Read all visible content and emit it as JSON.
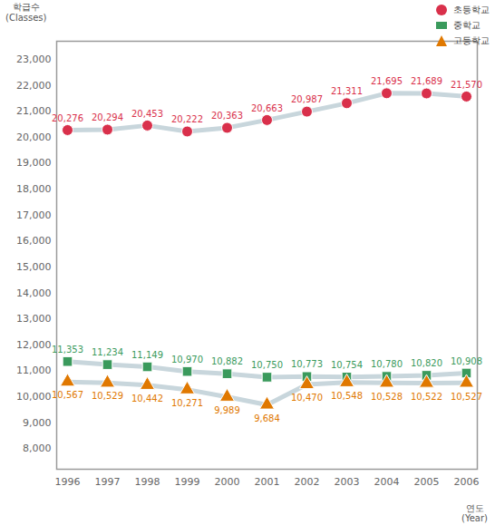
{
  "chart_data": {
    "type": "line",
    "y_label": "학급수\n(Classes)",
    "x_label": "연도\n(Year)",
    "categories": [
      "1996",
      "1997",
      "1998",
      "1999",
      "2000",
      "2001",
      "2002",
      "2003",
      "2004",
      "2005",
      "2006"
    ],
    "ylim": [
      7200,
      23700
    ],
    "yticks": [
      {
        "value": 8000,
        "label": "8,000"
      },
      {
        "value": 9000,
        "label": "9,000"
      },
      {
        "value": 10000,
        "label": "10,000"
      },
      {
        "value": 11000,
        "label": "11,000"
      },
      {
        "value": 12000,
        "label": "12,000"
      },
      {
        "value": 13000,
        "label": "13,000"
      },
      {
        "value": 14000,
        "label": "14,000"
      },
      {
        "value": 15000,
        "label": "15,000"
      },
      {
        "value": 16000,
        "label": "16,000"
      },
      {
        "value": 17000,
        "label": "17,000"
      },
      {
        "value": 18000,
        "label": "18,000"
      },
      {
        "value": 19000,
        "label": "19,000"
      },
      {
        "value": 20000,
        "label": "20,000"
      },
      {
        "value": 21000,
        "label": "21,000"
      },
      {
        "value": 22000,
        "label": "22,000"
      },
      {
        "value": 23000,
        "label": "23,000"
      }
    ],
    "grid": false,
    "legend": "top-right",
    "data_labels": true,
    "series": [
      {
        "name": "초등학교",
        "color": "#d9304b",
        "marker": "circle",
        "values": [
          20276,
          20294,
          20453,
          20222,
          20363,
          20663,
          20987,
          21311,
          21695,
          21689,
          21570
        ],
        "value_labels": [
          "20,276",
          "20,294",
          "20,453",
          "20,222",
          "20,363",
          "20,663",
          "20,987",
          "21,311",
          "21,695",
          "21,689",
          "21,570"
        ]
      },
      {
        "name": "중학교",
        "color": "#3a9a5c",
        "marker": "square",
        "values": [
          11353,
          11234,
          11149,
          10970,
          10882,
          10750,
          10773,
          10754,
          10780,
          10820,
          10908
        ],
        "value_labels": [
          "11,353",
          "11,234",
          "11,149",
          "10,970",
          "10,882",
          "10,750",
          "10,773",
          "10,754",
          "10,780",
          "10,820",
          "10,908"
        ]
      },
      {
        "name": "고등학교",
        "color": "#e07800",
        "marker": "triangle",
        "values": [
          10567,
          10529,
          10442,
          10271,
          9989,
          9684,
          10470,
          10548,
          10528,
          10522,
          10527
        ],
        "value_labels": [
          "10,567",
          "10,529",
          "10,442",
          "10,271",
          "9,989",
          "9,684",
          "10,470",
          "10,548",
          "10,528",
          "10,522",
          "10,527"
        ]
      }
    ]
  }
}
